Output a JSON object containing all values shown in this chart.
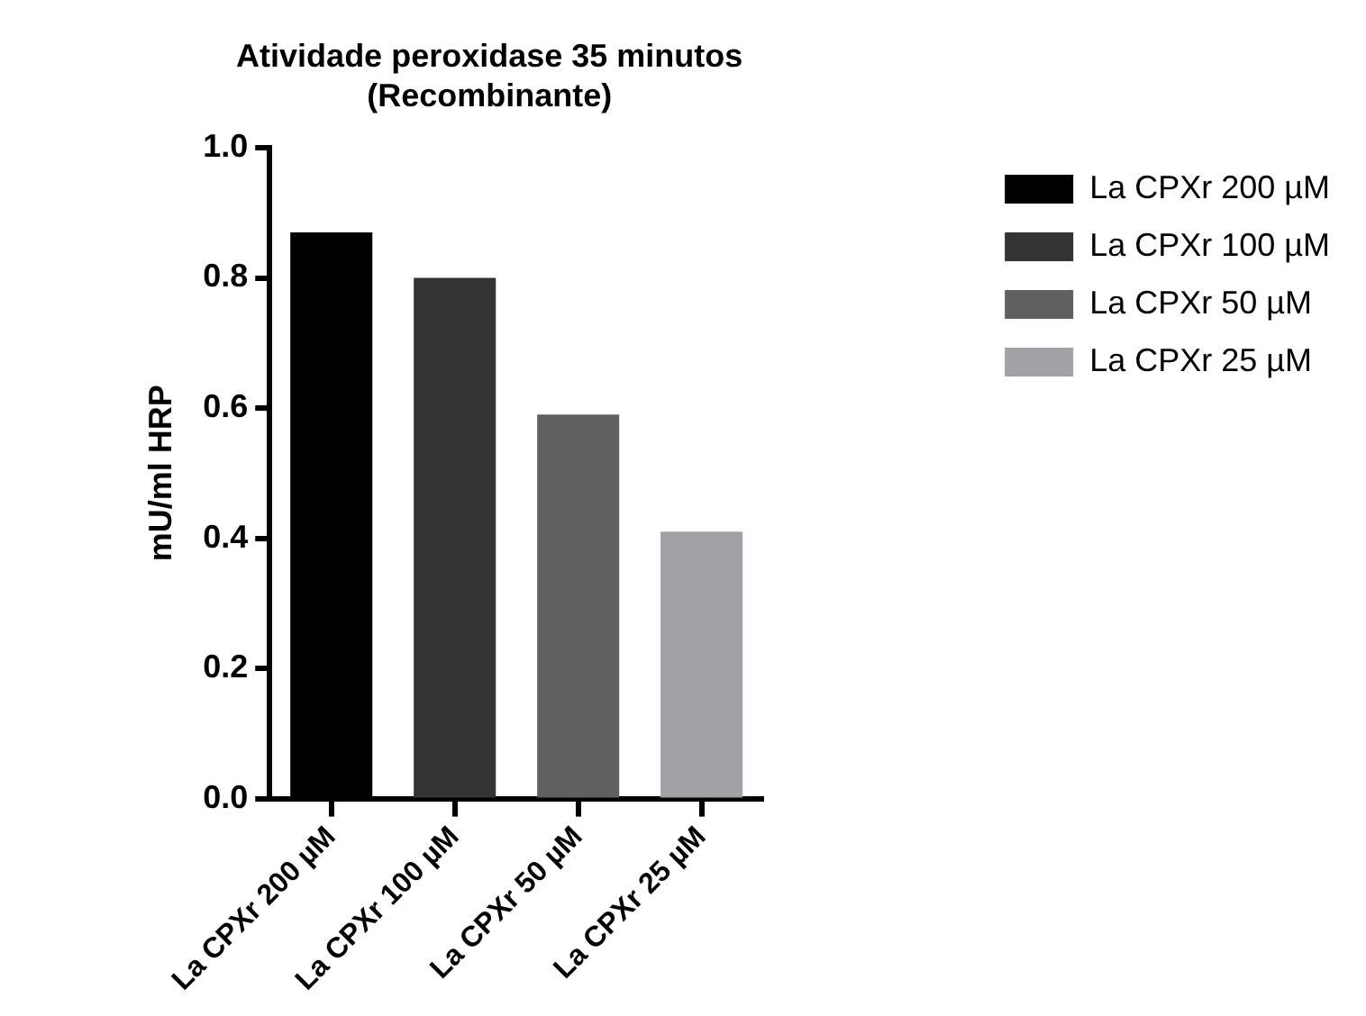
{
  "chart_data": {
    "type": "bar",
    "title": "Atividade peroxidase 35 minutos (Recombinante)",
    "ylabel": "mU/ml HRP",
    "categories": [
      "La CPXr 200 µM",
      "La CPXr 100 µM",
      "La CPXr 50 µM",
      "La CPXr 25 µM"
    ],
    "series": [
      {
        "name": "La CPXr 200 µM",
        "color": "#000000",
        "values": [
          0.87,
          null,
          null,
          null
        ]
      },
      {
        "name": "La CPXr 100 µM",
        "color": "#333333",
        "values": [
          null,
          0.8,
          null,
          null
        ]
      },
      {
        "name": "La CPXr 50 µM",
        "color": "#606060",
        "values": [
          null,
          null,
          0.59,
          null
        ]
      },
      {
        "name": "La CPXr 25 µM",
        "color": "#a2a2a6",
        "values": [
          null,
          null,
          null,
          0.41
        ]
      }
    ],
    "ylim": [
      0,
      1
    ],
    "yticks": [
      {
        "value": 0,
        "label": "0.0"
      },
      0.2,
      0.4,
      0.6,
      0.8,
      {
        "value": 1,
        "label": "1.0"
      }
    ],
    "grid": false,
    "legend": "top right"
  }
}
